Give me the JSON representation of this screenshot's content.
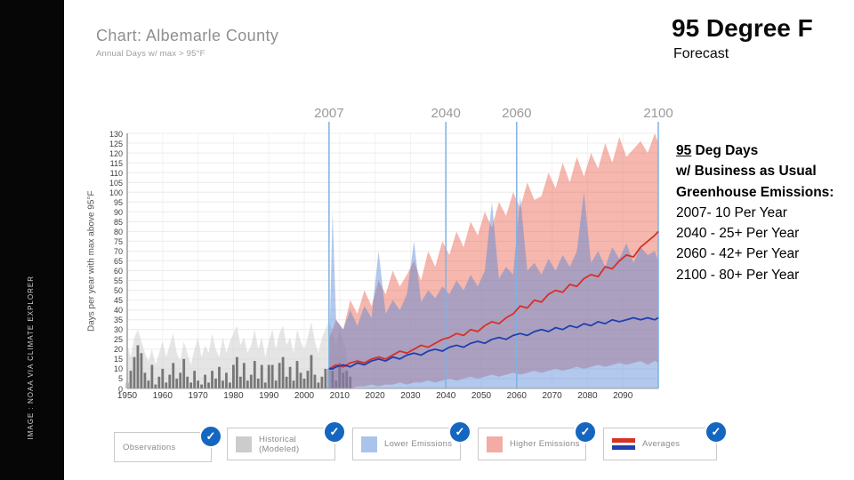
{
  "sidebar": {
    "credit": "IMAGE : NOAA VIA CLIMATE EXPLORER"
  },
  "header": {
    "chart_title": "Chart: Albemarle County",
    "chart_subtitle": "Annual Days w/ max > 95°F",
    "slide_title": "95 Degree F",
    "slide_subtitle": "Forecast"
  },
  "info_panel": {
    "lines": [
      {
        "u": "95",
        "t": " Deg Days",
        "b": 1
      },
      {
        "t": "w/ Business as Usual",
        "b": 1
      },
      {
        "t": "Greenhouse Emissions:",
        "b": 1
      },
      {
        "t": "2007- 10 Per Year",
        "b": 0
      },
      {
        "t": "2040 - 25+ Per Year",
        "b": 0
      },
      {
        "t": "2060 - 42+ Per Year",
        "b": 0
      },
      {
        "t": "2100 - 80+ Per Year",
        "b": 0
      }
    ]
  },
  "legend": [
    {
      "label": "Observations",
      "swatch": "none",
      "checked": true
    },
    {
      "label": "Historical (Modeled)",
      "swatch": "#cccccc",
      "checked": true
    },
    {
      "label": "Lower Emissions",
      "swatch": "#a9c4ea",
      "checked": true
    },
    {
      "label": "Higher Emissions",
      "swatch": "#f4aba3",
      "checked": true
    },
    {
      "label": "Averages",
      "swatch": "lines",
      "checked": true
    }
  ],
  "colors": {
    "accent_check": "#1566c0",
    "red_line": "#d83025",
    "blue_line": "#1f3fae",
    "higher_band": "#e8604c",
    "lower_band": "#5585d6",
    "marker_line": "#7fb2e5",
    "hist_band": "#cfcfcf",
    "bars": "#6e6e6e"
  },
  "chart_data": {
    "type": "area",
    "title": "Chart: Albemarle County",
    "subtitle": "Annual Days w/ max > 95°F",
    "ylabel": "Days per year with max above 95°F",
    "ylim": [
      0,
      130
    ],
    "xlim": [
      1950,
      2100
    ],
    "y_tick_step": 5,
    "x_ticks": [
      1950,
      1960,
      1970,
      1980,
      1990,
      2000,
      2010,
      2020,
      2030,
      2040,
      2050,
      2060,
      2070,
      2080,
      2090
    ],
    "markers": [
      2007,
      2040,
      2060,
      2100
    ],
    "observations": {
      "start_year": 1950,
      "values": [
        3,
        9,
        16,
        22,
        18,
        8,
        4,
        12,
        2,
        6,
        10,
        3,
        7,
        13,
        5,
        8,
        15,
        6,
        3,
        9,
        4,
        2,
        7,
        3,
        9,
        5,
        11,
        4,
        8,
        3,
        12,
        16,
        6,
        13,
        4,
        7,
        14,
        5,
        12,
        3,
        12,
        12,
        4,
        13,
        16,
        6,
        11,
        4,
        14,
        8,
        5,
        9,
        17,
        7,
        3,
        6,
        10,
        10,
        9,
        4,
        13,
        8,
        9,
        6
      ]
    },
    "historical_band": {
      "start_year": 1950,
      "upper": [
        22,
        16,
        26,
        30,
        24,
        18,
        14,
        20,
        12,
        18,
        24,
        16,
        22,
        28,
        18,
        14,
        24,
        18,
        12,
        20,
        26,
        16,
        22,
        18,
        28,
        20,
        16,
        26,
        18,
        24,
        28,
        32,
        22,
        26,
        18,
        22,
        30,
        20,
        26,
        16,
        24,
        30,
        20,
        28,
        32,
        22,
        26,
        18,
        30,
        24,
        20,
        26,
        34,
        24,
        18,
        26,
        30,
        35,
        28,
        22,
        30,
        24,
        18
      ],
      "lower": 0
    },
    "future_years": [
      2007,
      2008,
      2009,
      2011,
      2013,
      2015,
      2017,
      2019,
      2021,
      2023,
      2025,
      2027,
      2029,
      2031,
      2033,
      2035,
      2037,
      2039,
      2041,
      2043,
      2045,
      2047,
      2049,
      2051,
      2053,
      2055,
      2057,
      2059,
      2061,
      2063,
      2065,
      2067,
      2069,
      2071,
      2073,
      2075,
      2077,
      2079,
      2081,
      2083,
      2085,
      2087,
      2089,
      2091,
      2093,
      2095,
      2097,
      2099,
      2100
    ],
    "higher_emissions": {
      "upper": [
        25,
        30,
        35,
        30,
        45,
        38,
        50,
        42,
        55,
        48,
        60,
        52,
        58,
        65,
        55,
        70,
        62,
        75,
        68,
        80,
        72,
        85,
        78,
        90,
        82,
        95,
        88,
        100,
        92,
        105,
        96,
        98,
        110,
        102,
        115,
        105,
        118,
        108,
        120,
        112,
        125,
        115,
        128,
        118,
        122,
        126,
        120,
        130,
        125
      ],
      "lower": [
        0,
        0,
        0,
        1,
        0,
        1,
        1,
        2,
        1,
        2,
        2,
        3,
        2,
        3,
        3,
        4,
        3,
        4,
        5,
        4,
        5,
        6,
        5,
        6,
        7,
        6,
        7,
        8,
        7,
        8,
        9,
        8,
        9,
        10,
        9,
        10,
        11,
        10,
        11,
        12,
        11,
        12,
        13,
        12,
        13,
        14,
        12,
        14,
        13
      ],
      "average": [
        10,
        11,
        12,
        11,
        13,
        14,
        13,
        15,
        16,
        15,
        17,
        19,
        18,
        20,
        22,
        21,
        23,
        25,
        26,
        28,
        27,
        30,
        29,
        32,
        34,
        33,
        36,
        38,
        42,
        41,
        45,
        44,
        48,
        50,
        49,
        53,
        52,
        56,
        58,
        57,
        62,
        61,
        65,
        68,
        67,
        72,
        75,
        78,
        80
      ]
    },
    "lower_emissions": {
      "upper": [
        15,
        90,
        35,
        30,
        40,
        32,
        42,
        36,
        70,
        38,
        45,
        40,
        48,
        75,
        44,
        50,
        46,
        52,
        48,
        55,
        50,
        58,
        52,
        60,
        95,
        56,
        62,
        58,
        98,
        60,
        64,
        58,
        66,
        60,
        68,
        62,
        70,
        100,
        64,
        70,
        62,
        72,
        66,
        74,
        64,
        72,
        68,
        70,
        65
      ],
      "lower": 0,
      "average": [
        10,
        10,
        11,
        12,
        11,
        13,
        12,
        14,
        15,
        14,
        16,
        15,
        17,
        18,
        17,
        19,
        20,
        19,
        21,
        22,
        21,
        23,
        24,
        23,
        25,
        26,
        25,
        27,
        28,
        27,
        29,
        30,
        29,
        31,
        30,
        32,
        31,
        33,
        32,
        34,
        33,
        35,
        34,
        35,
        36,
        35,
        36,
        35,
        36
      ]
    },
    "key_points": [
      {
        "year": 2007,
        "higher_avg": 10
      },
      {
        "year": 2040,
        "higher_avg": 26
      },
      {
        "year": 2060,
        "higher_avg": 42
      },
      {
        "year": 2100,
        "higher_avg": 80
      }
    ]
  }
}
